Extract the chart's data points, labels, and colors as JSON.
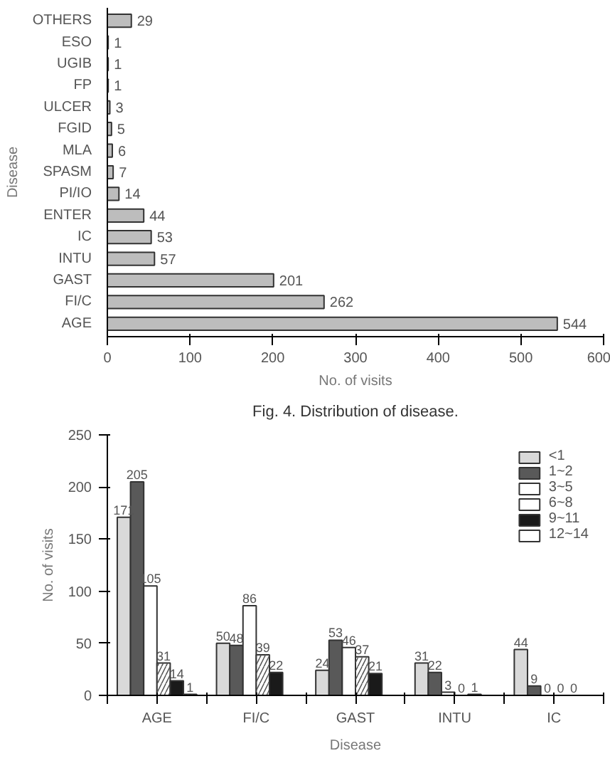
{
  "chart_data": [
    {
      "type": "bar",
      "orientation": "horizontal",
      "ylabel": "Disease",
      "xlabel": "No. of visits",
      "annotations": [
        "Fig. 4. Distribution of disease."
      ],
      "categories": [
        "OTHERS",
        "ESO",
        "UGIB",
        "FP",
        "ULCER",
        "FGID",
        "MLA",
        "SPASM",
        "PI/IO",
        "ENTER",
        "IC",
        "INTU",
        "GAST",
        "FI/C",
        "AGE"
      ],
      "values": [
        29,
        1,
        1,
        1,
        3,
        5,
        6,
        7,
        14,
        44,
        53,
        57,
        201,
        262,
        544
      ],
      "color": "#bdbdbd",
      "xlim": [
        0,
        600
      ],
      "xticks": [
        0,
        100,
        200,
        300,
        400,
        500,
        600
      ],
      "data_labels": true,
      "grid": false
    },
    {
      "type": "bar",
      "ylabel": "No. of visits",
      "xlabel": "Disease",
      "categories": [
        "AGE",
        "FI/C",
        "GAST",
        "INTU",
        "IC"
      ],
      "series": [
        {
          "name": "<1",
          "color": "#d9d9d9",
          "values": [
            171,
            50,
            24,
            31,
            44
          ]
        },
        {
          "name": "1~2",
          "color": "#595959",
          "values": [
            205,
            48,
            53,
            22,
            9
          ]
        },
        {
          "name": "3~5",
          "color": "#ffffff",
          "values": [
            105,
            86,
            46,
            3,
            0
          ]
        },
        {
          "name": "6~8",
          "color": "#ffffff",
          "values": [
            31,
            39,
            37,
            0,
            0
          ]
        },
        {
          "name": "9~11",
          "color": "#1a1a1a",
          "values": [
            14,
            22,
            21,
            1,
            0
          ]
        },
        {
          "name": "12~14",
          "color": "#ffffff",
          "values": [
            1,
            null,
            null,
            null,
            null
          ]
        }
      ],
      "ylim": [
        0,
        250
      ],
      "yticks": [
        0,
        50,
        100,
        150,
        200,
        250
      ],
      "data_labels": true,
      "legend": "top right",
      "grid": false
    }
  ]
}
